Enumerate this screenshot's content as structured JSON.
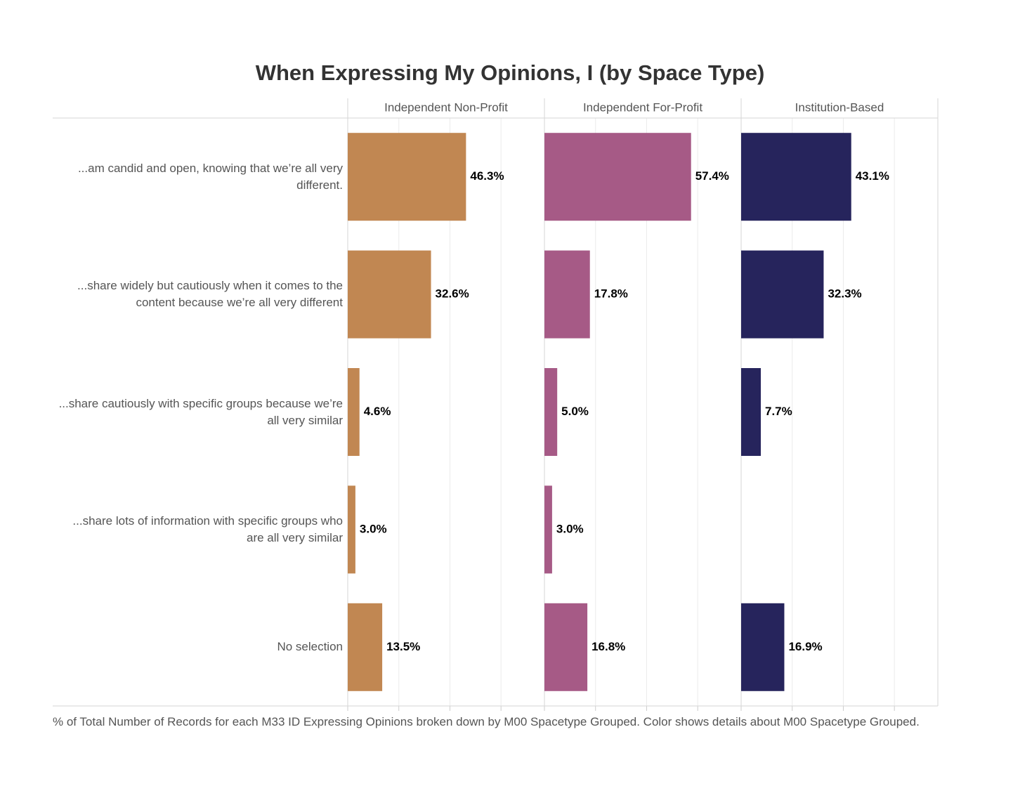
{
  "chart_data": {
    "type": "bar",
    "orientation": "horizontal",
    "title": "When Expressing My Opinions, I (by Space Type)",
    "categories": [
      "...am candid and open, knowing that we’re all very different.",
      "...share widely but cautiously when it comes to the content because we’re all very different",
      "...share cautiously with specific groups because we’re all very similar",
      "...share lots of information with specific groups who are all very similar",
      "No selection"
    ],
    "series": [
      {
        "name": "Independent Non-Profit",
        "color": "#c18752",
        "values": [
          46.3,
          32.6,
          4.6,
          3.0,
          13.5
        ],
        "value_labels": [
          "46.3%",
          "32.6%",
          "4.6%",
          "3.0%",
          "13.5%"
        ]
      },
      {
        "name": "Independent For-Profit",
        "color": "#a65a86",
        "values": [
          57.4,
          17.8,
          5.0,
          3.0,
          16.8
        ],
        "value_labels": [
          "57.4%",
          "17.8%",
          "5.0%",
          "3.0%",
          "16.8%"
        ]
      },
      {
        "name": "Institution-Based",
        "color": "#26245c",
        "values": [
          43.1,
          32.3,
          7.7,
          null,
          16.9
        ],
        "value_labels": [
          "43.1%",
          "32.3%",
          "7.7%",
          null,
          "16.9%"
        ]
      }
    ],
    "xlim": [
      0,
      77
    ],
    "xticks": [
      0,
      20,
      40,
      60
    ],
    "grid": true,
    "note": "% of Total Number of Records for each M33 ID Expressing Opinions broken down by M00 Spacetype Grouped.  Color shows details about M00 Spacetype Grouped."
  }
}
